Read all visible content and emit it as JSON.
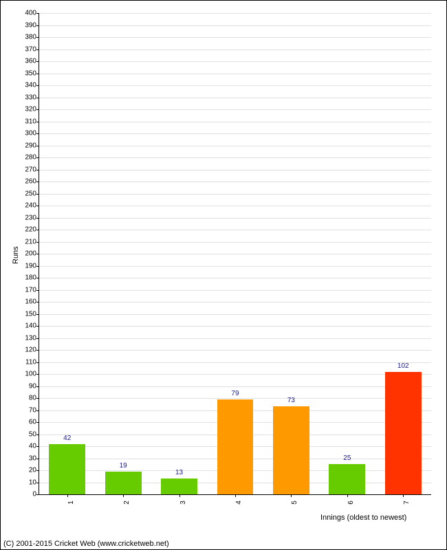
{
  "chart": {
    "type": "bar",
    "xlabel": "Innings (oldest to newest)",
    "ylabel": "Runs",
    "ylim": [
      0,
      400
    ],
    "ytick_step": 10,
    "categories": [
      "1",
      "2",
      "3",
      "4",
      "5",
      "6",
      "7"
    ],
    "values": [
      42,
      19,
      13,
      79,
      73,
      25,
      102
    ],
    "bar_colors": [
      "#66cc00",
      "#66cc00",
      "#66cc00",
      "#ff9900",
      "#ff9900",
      "#66cc00",
      "#ff3300"
    ],
    "value_label_color": "#1a1a8a",
    "grid_color": "#e0e0e0",
    "axis_color": "#000000",
    "background_color": "#ffffff",
    "bar_width_ratio": 0.65,
    "label_fontsize": 11,
    "tick_fontsize": 10,
    "value_fontsize": 10
  },
  "footer": {
    "text": "(C) 2001-2015 Cricket Web (www.cricketweb.net)"
  }
}
